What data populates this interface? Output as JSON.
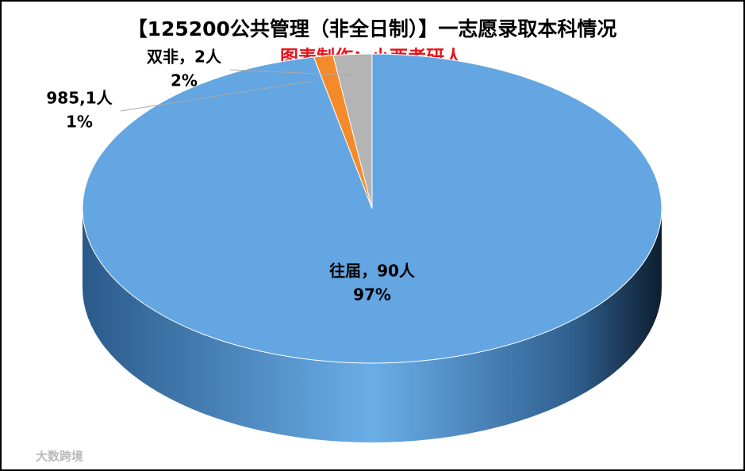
{
  "chart_data": {
    "type": "pie3d",
    "title": "【125200公共管理（非全日制）】一志愿录取本科情况",
    "subtitle": "图表制作：小西考研人",
    "watermark": "大数跨境",
    "values": [
      90,
      1,
      2
    ],
    "value_labels": [
      "往届，90人",
      "985,1人",
      "双非，2人"
    ],
    "percents": [
      97,
      1,
      2
    ],
    "percent_labels": [
      "97%",
      "1%",
      "2%"
    ],
    "colors": [
      "#64a6e2",
      "#f58a2a",
      "#b4b4b4"
    ]
  }
}
